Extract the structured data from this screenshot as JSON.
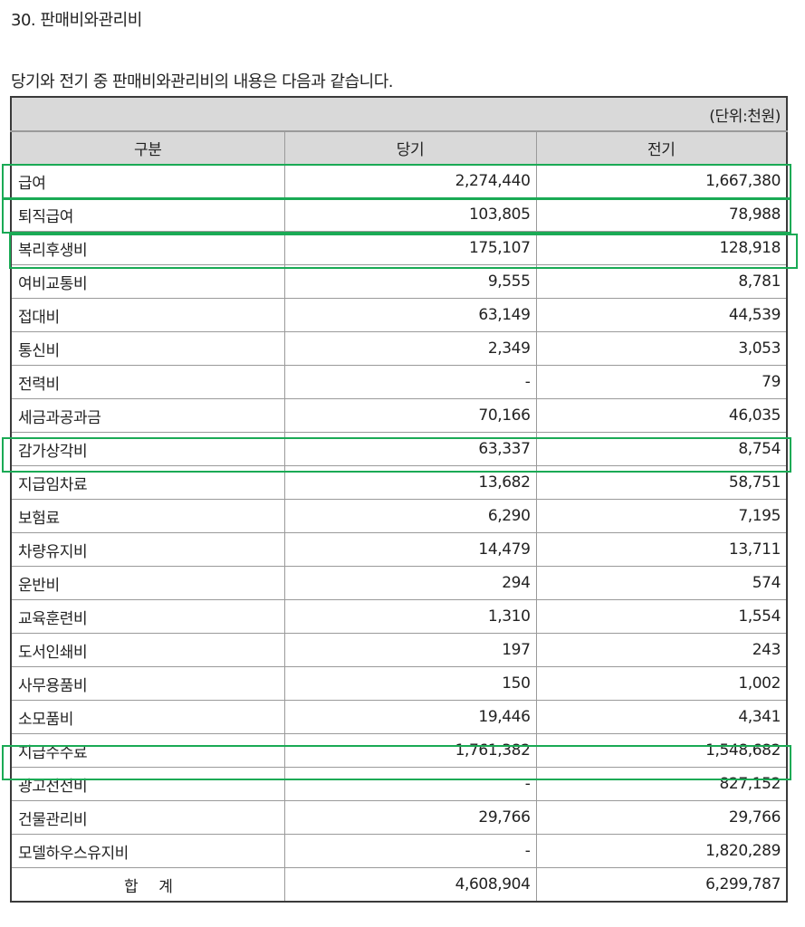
{
  "section": {
    "title": "30. 판매비와관리비",
    "intro": "당기와 전기 중 판매비와관리비의 내용은 다음과 같습니다."
  },
  "table": {
    "unit": "(단위:천원)",
    "headers": [
      "구분",
      "당기",
      "전기"
    ],
    "rows": [
      {
        "label": "급여",
        "current": "2,274,440",
        "prior": "1,667,380"
      },
      {
        "label": "퇴직급여",
        "current": "103,805",
        "prior": "78,988"
      },
      {
        "label": "복리후생비",
        "current": "175,107",
        "prior": "128,918"
      },
      {
        "label": "여비교통비",
        "current": "9,555",
        "prior": "8,781"
      },
      {
        "label": "접대비",
        "current": "63,149",
        "prior": "44,539"
      },
      {
        "label": "통신비",
        "current": "2,349",
        "prior": "3,053"
      },
      {
        "label": "전력비",
        "current": "-",
        "prior": "79"
      },
      {
        "label": "세금과공과금",
        "current": "70,166",
        "prior": "46,035"
      },
      {
        "label": "감가상각비",
        "current": "63,337",
        "prior": "8,754"
      },
      {
        "label": "지급임차료",
        "current": "13,682",
        "prior": "58,751"
      },
      {
        "label": "보험료",
        "current": "6,290",
        "prior": "7,195"
      },
      {
        "label": "차량유지비",
        "current": "14,479",
        "prior": "13,711"
      },
      {
        "label": "운반비",
        "current": "294",
        "prior": "574"
      },
      {
        "label": "교육훈련비",
        "current": "1,310",
        "prior": "1,554"
      },
      {
        "label": "도서인쇄비",
        "current": "197",
        "prior": "243"
      },
      {
        "label": "사무용품비",
        "current": "150",
        "prior": "1,002"
      },
      {
        "label": "소모품비",
        "current": "19,446",
        "prior": "4,341"
      },
      {
        "label": "지급수수료",
        "current": "1,761,382",
        "prior": "1,548,682"
      },
      {
        "label": "광고선전비",
        "current": "-",
        "prior": "827,152"
      },
      {
        "label": "건물관리비",
        "current": "29,766",
        "prior": "29,766"
      },
      {
        "label": "모델하우스유지비",
        "current": "-",
        "prior": "1,820,289"
      }
    ],
    "total": {
      "label": "합 계",
      "current": "4,608,904",
      "prior": "6,299,787"
    }
  },
  "highlights": {
    "color": "#1aaa55",
    "rows": [
      "급여",
      "퇴직급여",
      "복리후생비",
      "감가상각비",
      "지급수수료"
    ]
  }
}
